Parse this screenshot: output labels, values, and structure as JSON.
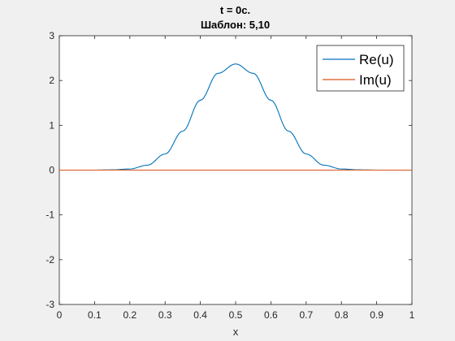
{
  "chart_data": {
    "type": "line",
    "title": [
      "t = 0c.",
      "Шаблон: 5,10"
    ],
    "xlabel": "x",
    "ylabel": "",
    "xlim": [
      0,
      1
    ],
    "ylim": [
      -3,
      3
    ],
    "xticks": [
      "0",
      "0.1",
      "0.2",
      "0.3",
      "0.4",
      "0.5",
      "0.6",
      "0.7",
      "0.8",
      "0.9",
      "1"
    ],
    "yticks": [
      "-3",
      "-2",
      "-1",
      "0",
      "1",
      "2",
      "3"
    ],
    "grid": false,
    "legend_position": "top-right",
    "x": [
      0,
      0.05,
      0.1,
      0.15,
      0.2,
      0.25,
      0.3,
      0.35,
      0.4,
      0.45,
      0.5,
      0.55,
      0.6,
      0.65,
      0.7,
      0.75,
      0.8,
      0.85,
      0.9,
      0.95,
      1
    ],
    "series": [
      {
        "name": "Re(u)",
        "color": "#0072bd",
        "values": [
          0,
          0.0,
          0.0,
          0.005,
          0.025,
          0.11,
          0.36,
          0.87,
          1.56,
          2.16,
          2.37,
          2.16,
          1.56,
          0.87,
          0.36,
          0.11,
          0.025,
          0.005,
          0.0,
          0.0,
          0
        ]
      },
      {
        "name": "Im(u)",
        "color": "#d95319",
        "values": [
          0,
          0,
          0,
          0,
          0,
          0,
          0,
          0,
          0,
          0,
          0,
          0,
          0,
          0,
          0,
          0,
          0,
          0,
          0,
          0,
          0
        ]
      }
    ]
  }
}
